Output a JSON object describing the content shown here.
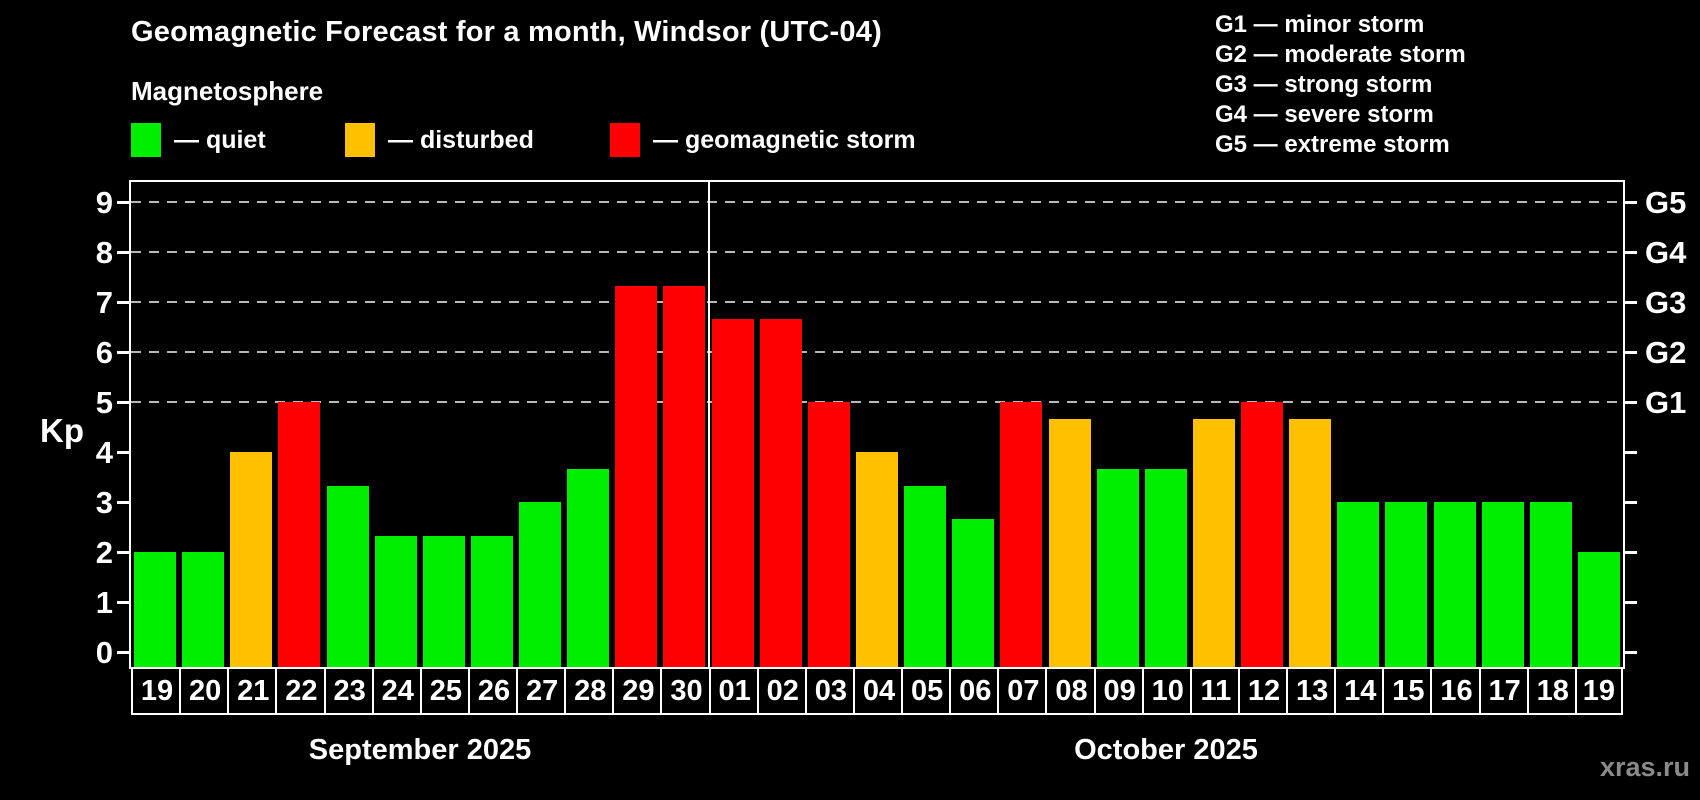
{
  "title": "Geomagnetic Forecast for a month, Windsor (UTC-04)",
  "subtitle": "Magnetosphere",
  "legend": {
    "items": [
      {
        "key": "quiet",
        "label": "— quiet",
        "color": "#00ee00"
      },
      {
        "key": "disturbed",
        "label": "— disturbed",
        "color": "#ffc000"
      },
      {
        "key": "storm",
        "label": "— geomagnetic storm",
        "color": "#ff0000"
      }
    ]
  },
  "g_legend": [
    "G1 — minor storm",
    "G2 — moderate storm",
    "G3 — strong storm",
    "G4 — severe storm",
    "G5 — extreme storm"
  ],
  "watermark": "xras.ru",
  "chart_data": {
    "type": "bar",
    "title": "Geomagnetic Forecast for a month, Windsor (UTC-04)",
    "ylabel": "Kp",
    "ylim": [
      0,
      9
    ],
    "yticks": [
      0,
      1,
      2,
      3,
      4,
      5,
      6,
      7,
      8,
      9
    ],
    "gridlines_at": [
      5,
      6,
      7,
      8,
      9
    ],
    "grid_style": "dashed-horizontal",
    "right_axis_labels": [
      {
        "value": 5,
        "label": "G1"
      },
      {
        "value": 6,
        "label": "G2"
      },
      {
        "value": 7,
        "label": "G3"
      },
      {
        "value": 8,
        "label": "G4"
      },
      {
        "value": 9,
        "label": "G5"
      }
    ],
    "months": [
      {
        "label": "September 2025",
        "days": 12
      },
      {
        "label": "October 2025",
        "days": 19
      }
    ],
    "categories": [
      "19",
      "20",
      "21",
      "22",
      "23",
      "24",
      "25",
      "26",
      "27",
      "28",
      "29",
      "30",
      "01",
      "02",
      "03",
      "04",
      "05",
      "06",
      "07",
      "08",
      "09",
      "10",
      "11",
      "12",
      "13",
      "14",
      "15",
      "16",
      "17",
      "18",
      "19"
    ],
    "values": [
      2,
      2,
      4,
      5,
      3.33,
      2.33,
      2.33,
      2.33,
      3,
      3.67,
      7.33,
      7.33,
      6.67,
      6.67,
      5,
      4,
      3.33,
      2.67,
      5,
      4.67,
      3.67,
      3.67,
      4.67,
      5,
      4.67,
      3,
      3,
      3,
      3,
      3,
      2
    ],
    "statuses": [
      "quiet",
      "quiet",
      "disturbed",
      "storm",
      "quiet",
      "quiet",
      "quiet",
      "quiet",
      "quiet",
      "quiet",
      "storm",
      "storm",
      "storm",
      "storm",
      "storm",
      "disturbed",
      "quiet",
      "quiet",
      "storm",
      "disturbed",
      "quiet",
      "quiet",
      "disturbed",
      "storm",
      "disturbed",
      "quiet",
      "quiet",
      "quiet",
      "quiet",
      "quiet",
      "quiet"
    ],
    "colors": {
      "quiet": "#00ee00",
      "disturbed": "#ffc000",
      "storm": "#ff0000"
    }
  }
}
